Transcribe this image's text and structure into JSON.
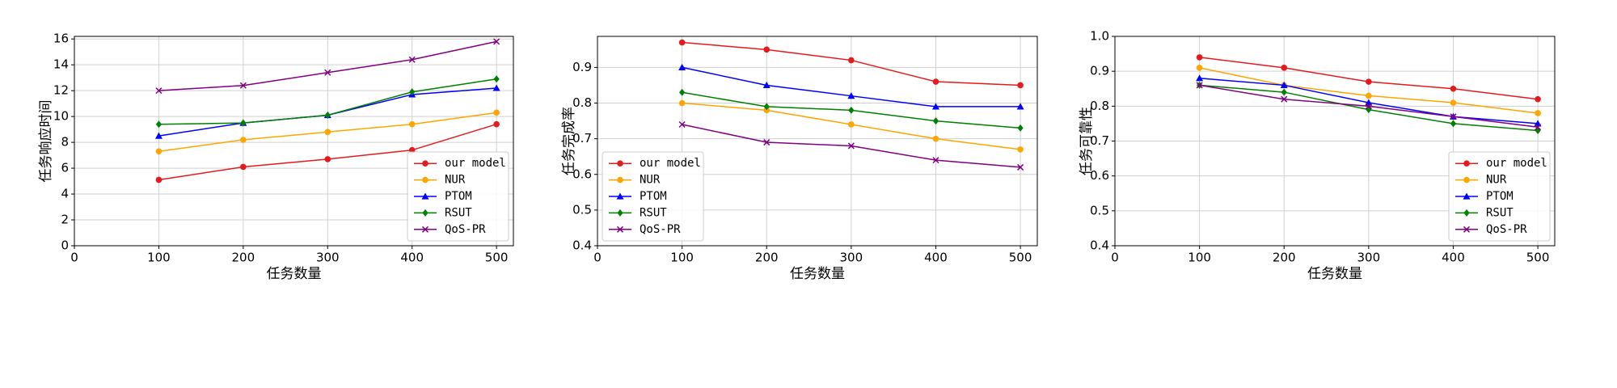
{
  "chart_data": [
    {
      "type": "line",
      "x_label": "任务数量",
      "y_label": "任务响应时间",
      "x": [
        100,
        200,
        300,
        400,
        500
      ],
      "xlim": [
        0,
        520
      ],
      "xticks": [
        0,
        100,
        200,
        300,
        400,
        500
      ],
      "ylim": [
        0,
        16.2
      ],
      "yticks": [
        0,
        2,
        4,
        6,
        8,
        10,
        12,
        14,
        16
      ],
      "grid": true,
      "legend": "lower right",
      "series": [
        {
          "name": "our model",
          "color": "#e41a1c",
          "marker": "circle",
          "values": [
            5.1,
            6.1,
            6.7,
            7.4,
            9.4
          ]
        },
        {
          "name": "NUR",
          "color": "#ffa500",
          "marker": "circle",
          "values": [
            7.3,
            8.2,
            8.8,
            9.4,
            10.3
          ]
        },
        {
          "name": "PTOM",
          "color": "#0000ff",
          "marker": "triangle",
          "values": [
            8.5,
            9.5,
            10.1,
            11.7,
            12.2
          ]
        },
        {
          "name": "RSUT",
          "color": "#008000",
          "marker": "diamond",
          "values": [
            9.4,
            9.5,
            10.1,
            11.9,
            12.9
          ]
        },
        {
          "name": "QoS-PR",
          "color": "#800080",
          "marker": "x",
          "values": [
            12.0,
            12.4,
            13.4,
            14.4,
            15.8
          ]
        }
      ]
    },
    {
      "type": "line",
      "x_label": "任务数量",
      "y_label": "任务完成率",
      "x": [
        100,
        200,
        300,
        400,
        500
      ],
      "xlim": [
        0,
        520
      ],
      "xticks": [
        0,
        100,
        200,
        300,
        400,
        500
      ],
      "ylim": [
        0.4,
        0.987
      ],
      "yticks": [
        0.4,
        0.5,
        0.6,
        0.7,
        0.8,
        0.9
      ],
      "grid": true,
      "legend": "lower left",
      "series": [
        {
          "name": "our model",
          "color": "#e41a1c",
          "marker": "circle",
          "values": [
            0.97,
            0.95,
            0.92,
            0.86,
            0.85
          ]
        },
        {
          "name": "NUR",
          "color": "#ffa500",
          "marker": "circle",
          "values": [
            0.8,
            0.78,
            0.74,
            0.7,
            0.67
          ]
        },
        {
          "name": "PTOM",
          "color": "#0000ff",
          "marker": "triangle",
          "values": [
            0.9,
            0.85,
            0.82,
            0.79,
            0.79
          ]
        },
        {
          "name": "RSUT",
          "color": "#008000",
          "marker": "diamond",
          "values": [
            0.83,
            0.79,
            0.78,
            0.75,
            0.73
          ]
        },
        {
          "name": "QoS-PR",
          "color": "#800080",
          "marker": "x",
          "values": [
            0.74,
            0.69,
            0.68,
            0.64,
            0.62
          ]
        }
      ]
    },
    {
      "type": "line",
      "x_label": "任务数量",
      "y_label": "任务可靠性",
      "x": [
        100,
        200,
        300,
        400,
        500
      ],
      "xlim": [
        0,
        520
      ],
      "xticks": [
        0,
        100,
        200,
        300,
        400,
        500
      ],
      "ylim": [
        0.4,
        1.0
      ],
      "yticks": [
        0.4,
        0.5,
        0.6,
        0.7,
        0.8,
        0.9,
        {
          "value": 1.0,
          "label": "1.0"
        }
      ],
      "grid": true,
      "legend": "lower right",
      "series": [
        {
          "name": "our model",
          "color": "#e41a1c",
          "marker": "circle",
          "values": [
            0.94,
            0.91,
            0.87,
            0.85,
            0.82
          ]
        },
        {
          "name": "NUR",
          "color": "#ffa500",
          "marker": "circle",
          "values": [
            0.91,
            0.86,
            0.83,
            0.81,
            0.78
          ]
        },
        {
          "name": "PTOM",
          "color": "#0000ff",
          "marker": "triangle",
          "values": [
            0.88,
            0.86,
            0.81,
            0.77,
            0.75
          ]
        },
        {
          "name": "RSUT",
          "color": "#008000",
          "marker": "diamond",
          "values": [
            0.86,
            0.84,
            0.79,
            0.75,
            0.73
          ]
        },
        {
          "name": "QoS-PR",
          "color": "#800080",
          "marker": "x",
          "values": [
            0.86,
            0.82,
            0.8,
            0.77,
            0.74
          ]
        }
      ]
    }
  ]
}
